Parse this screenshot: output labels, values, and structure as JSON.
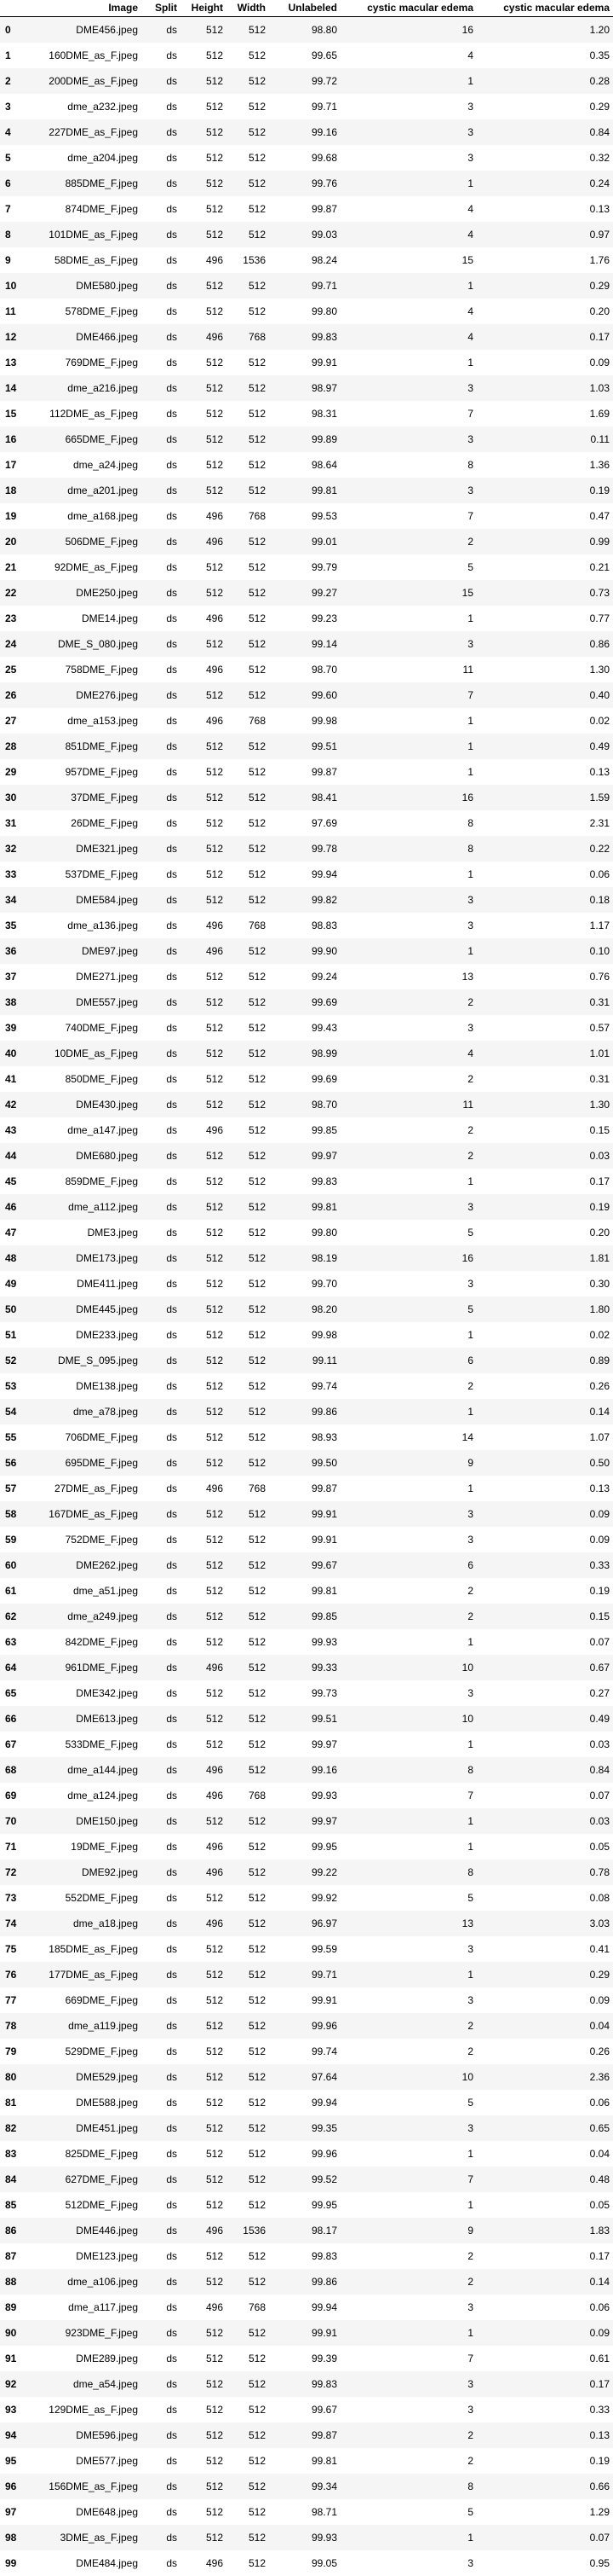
{
  "table": {
    "index_header": "",
    "columns": [
      "Image",
      "Split",
      "Height",
      "Width",
      "Unlabeled",
      "cystic macular edema",
      "cystic macular edema"
    ],
    "rows": [
      [
        "0",
        "DME456.jpeg",
        "ds",
        "512",
        "512",
        "98.80",
        "16",
        "1.20"
      ],
      [
        "1",
        "160DME_as_F.jpeg",
        "ds",
        "512",
        "512",
        "99.65",
        "4",
        "0.35"
      ],
      [
        "2",
        "200DME_as_F.jpeg",
        "ds",
        "512",
        "512",
        "99.72",
        "1",
        "0.28"
      ],
      [
        "3",
        "dme_a232.jpeg",
        "ds",
        "512",
        "512",
        "99.71",
        "3",
        "0.29"
      ],
      [
        "4",
        "227DME_as_F.jpeg",
        "ds",
        "512",
        "512",
        "99.16",
        "3",
        "0.84"
      ],
      [
        "5",
        "dme_a204.jpeg",
        "ds",
        "512",
        "512",
        "99.68",
        "3",
        "0.32"
      ],
      [
        "6",
        "885DME_F.jpeg",
        "ds",
        "512",
        "512",
        "99.76",
        "1",
        "0.24"
      ],
      [
        "7",
        "874DME_F.jpeg",
        "ds",
        "512",
        "512",
        "99.87",
        "4",
        "0.13"
      ],
      [
        "8",
        "101DME_as_F.jpeg",
        "ds",
        "512",
        "512",
        "99.03",
        "4",
        "0.97"
      ],
      [
        "9",
        "58DME_as_F.jpeg",
        "ds",
        "496",
        "1536",
        "98.24",
        "15",
        "1.76"
      ],
      [
        "10",
        "DME580.jpeg",
        "ds",
        "512",
        "512",
        "99.71",
        "1",
        "0.29"
      ],
      [
        "11",
        "578DME_F.jpeg",
        "ds",
        "512",
        "512",
        "99.80",
        "4",
        "0.20"
      ],
      [
        "12",
        "DME466.jpeg",
        "ds",
        "496",
        "768",
        "99.83",
        "4",
        "0.17"
      ],
      [
        "13",
        "769DME_F.jpeg",
        "ds",
        "512",
        "512",
        "99.91",
        "1",
        "0.09"
      ],
      [
        "14",
        "dme_a216.jpeg",
        "ds",
        "512",
        "512",
        "98.97",
        "3",
        "1.03"
      ],
      [
        "15",
        "112DME_as_F.jpeg",
        "ds",
        "512",
        "512",
        "98.31",
        "7",
        "1.69"
      ],
      [
        "16",
        "665DME_F.jpeg",
        "ds",
        "512",
        "512",
        "99.89",
        "3",
        "0.11"
      ],
      [
        "17",
        "dme_a24.jpeg",
        "ds",
        "512",
        "512",
        "98.64",
        "8",
        "1.36"
      ],
      [
        "18",
        "dme_a201.jpeg",
        "ds",
        "512",
        "512",
        "99.81",
        "3",
        "0.19"
      ],
      [
        "19",
        "dme_a168.jpeg",
        "ds",
        "496",
        "768",
        "99.53",
        "7",
        "0.47"
      ],
      [
        "20",
        "506DME_F.jpeg",
        "ds",
        "496",
        "512",
        "99.01",
        "2",
        "0.99"
      ],
      [
        "21",
        "92DME_as_F.jpeg",
        "ds",
        "512",
        "512",
        "99.79",
        "5",
        "0.21"
      ],
      [
        "22",
        "DME250.jpeg",
        "ds",
        "512",
        "512",
        "99.27",
        "15",
        "0.73"
      ],
      [
        "23",
        "DME14.jpeg",
        "ds",
        "496",
        "512",
        "99.23",
        "1",
        "0.77"
      ],
      [
        "24",
        "DME_S_080.jpeg",
        "ds",
        "512",
        "512",
        "99.14",
        "3",
        "0.86"
      ],
      [
        "25",
        "758DME_F.jpeg",
        "ds",
        "496",
        "512",
        "98.70",
        "11",
        "1.30"
      ],
      [
        "26",
        "DME276.jpeg",
        "ds",
        "512",
        "512",
        "99.60",
        "7",
        "0.40"
      ],
      [
        "27",
        "dme_a153.jpeg",
        "ds",
        "496",
        "768",
        "99.98",
        "1",
        "0.02"
      ],
      [
        "28",
        "851DME_F.jpeg",
        "ds",
        "512",
        "512",
        "99.51",
        "1",
        "0.49"
      ],
      [
        "29",
        "957DME_F.jpeg",
        "ds",
        "512",
        "512",
        "99.87",
        "1",
        "0.13"
      ],
      [
        "30",
        "37DME_F.jpeg",
        "ds",
        "512",
        "512",
        "98.41",
        "16",
        "1.59"
      ],
      [
        "31",
        "26DME_F.jpeg",
        "ds",
        "512",
        "512",
        "97.69",
        "8",
        "2.31"
      ],
      [
        "32",
        "DME321.jpeg",
        "ds",
        "512",
        "512",
        "99.78",
        "8",
        "0.22"
      ],
      [
        "33",
        "537DME_F.jpeg",
        "ds",
        "512",
        "512",
        "99.94",
        "1",
        "0.06"
      ],
      [
        "34",
        "DME584.jpeg",
        "ds",
        "512",
        "512",
        "99.82",
        "3",
        "0.18"
      ],
      [
        "35",
        "dme_a136.jpeg",
        "ds",
        "496",
        "768",
        "98.83",
        "3",
        "1.17"
      ],
      [
        "36",
        "DME97.jpeg",
        "ds",
        "496",
        "512",
        "99.90",
        "1",
        "0.10"
      ],
      [
        "37",
        "DME271.jpeg",
        "ds",
        "512",
        "512",
        "99.24",
        "13",
        "0.76"
      ],
      [
        "38",
        "DME557.jpeg",
        "ds",
        "512",
        "512",
        "99.69",
        "2",
        "0.31"
      ],
      [
        "39",
        "740DME_F.jpeg",
        "ds",
        "512",
        "512",
        "99.43",
        "3",
        "0.57"
      ],
      [
        "40",
        "10DME_as_F.jpeg",
        "ds",
        "512",
        "512",
        "98.99",
        "4",
        "1.01"
      ],
      [
        "41",
        "850DME_F.jpeg",
        "ds",
        "512",
        "512",
        "99.69",
        "2",
        "0.31"
      ],
      [
        "42",
        "DME430.jpeg",
        "ds",
        "512",
        "512",
        "98.70",
        "11",
        "1.30"
      ],
      [
        "43",
        "dme_a147.jpeg",
        "ds",
        "496",
        "512",
        "99.85",
        "2",
        "0.15"
      ],
      [
        "44",
        "DME680.jpeg",
        "ds",
        "512",
        "512",
        "99.97",
        "2",
        "0.03"
      ],
      [
        "45",
        "859DME_F.jpeg",
        "ds",
        "512",
        "512",
        "99.83",
        "1",
        "0.17"
      ],
      [
        "46",
        "dme_a112.jpeg",
        "ds",
        "512",
        "512",
        "99.81",
        "3",
        "0.19"
      ],
      [
        "47",
        "DME3.jpeg",
        "ds",
        "512",
        "512",
        "99.80",
        "5",
        "0.20"
      ],
      [
        "48",
        "DME173.jpeg",
        "ds",
        "512",
        "512",
        "98.19",
        "16",
        "1.81"
      ],
      [
        "49",
        "DME411.jpeg",
        "ds",
        "512",
        "512",
        "99.70",
        "3",
        "0.30"
      ],
      [
        "50",
        "DME445.jpeg",
        "ds",
        "512",
        "512",
        "98.20",
        "5",
        "1.80"
      ],
      [
        "51",
        "DME233.jpeg",
        "ds",
        "512",
        "512",
        "99.98",
        "1",
        "0.02"
      ],
      [
        "52",
        "DME_S_095.jpeg",
        "ds",
        "512",
        "512",
        "99.11",
        "6",
        "0.89"
      ],
      [
        "53",
        "DME138.jpeg",
        "ds",
        "512",
        "512",
        "99.74",
        "2",
        "0.26"
      ],
      [
        "54",
        "dme_a78.jpeg",
        "ds",
        "512",
        "512",
        "99.86",
        "1",
        "0.14"
      ],
      [
        "55",
        "706DME_F.jpeg",
        "ds",
        "512",
        "512",
        "98.93",
        "14",
        "1.07"
      ],
      [
        "56",
        "695DME_F.jpeg",
        "ds",
        "512",
        "512",
        "99.50",
        "9",
        "0.50"
      ],
      [
        "57",
        "27DME_as_F.jpeg",
        "ds",
        "496",
        "768",
        "99.87",
        "1",
        "0.13"
      ],
      [
        "58",
        "167DME_as_F.jpeg",
        "ds",
        "512",
        "512",
        "99.91",
        "3",
        "0.09"
      ],
      [
        "59",
        "752DME_F.jpeg",
        "ds",
        "512",
        "512",
        "99.91",
        "3",
        "0.09"
      ],
      [
        "60",
        "DME262.jpeg",
        "ds",
        "512",
        "512",
        "99.67",
        "6",
        "0.33"
      ],
      [
        "61",
        "dme_a51.jpeg",
        "ds",
        "512",
        "512",
        "99.81",
        "2",
        "0.19"
      ],
      [
        "62",
        "dme_a249.jpeg",
        "ds",
        "512",
        "512",
        "99.85",
        "2",
        "0.15"
      ],
      [
        "63",
        "842DME_F.jpeg",
        "ds",
        "512",
        "512",
        "99.93",
        "1",
        "0.07"
      ],
      [
        "64",
        "961DME_F.jpeg",
        "ds",
        "496",
        "512",
        "99.33",
        "10",
        "0.67"
      ],
      [
        "65",
        "DME342.jpeg",
        "ds",
        "512",
        "512",
        "99.73",
        "3",
        "0.27"
      ],
      [
        "66",
        "DME613.jpeg",
        "ds",
        "512",
        "512",
        "99.51",
        "10",
        "0.49"
      ],
      [
        "67",
        "533DME_F.jpeg",
        "ds",
        "512",
        "512",
        "99.97",
        "1",
        "0.03"
      ],
      [
        "68",
        "dme_a144.jpeg",
        "ds",
        "496",
        "512",
        "99.16",
        "8",
        "0.84"
      ],
      [
        "69",
        "dme_a124.jpeg",
        "ds",
        "496",
        "768",
        "99.93",
        "7",
        "0.07"
      ],
      [
        "70",
        "DME150.jpeg",
        "ds",
        "512",
        "512",
        "99.97",
        "1",
        "0.03"
      ],
      [
        "71",
        "19DME_F.jpeg",
        "ds",
        "496",
        "512",
        "99.95",
        "1",
        "0.05"
      ],
      [
        "72",
        "DME92.jpeg",
        "ds",
        "496",
        "512",
        "99.22",
        "8",
        "0.78"
      ],
      [
        "73",
        "552DME_F.jpeg",
        "ds",
        "512",
        "512",
        "99.92",
        "5",
        "0.08"
      ],
      [
        "74",
        "dme_a18.jpeg",
        "ds",
        "496",
        "512",
        "96.97",
        "13",
        "3.03"
      ],
      [
        "75",
        "185DME_as_F.jpeg",
        "ds",
        "512",
        "512",
        "99.59",
        "3",
        "0.41"
      ],
      [
        "76",
        "177DME_as_F.jpeg",
        "ds",
        "512",
        "512",
        "99.71",
        "1",
        "0.29"
      ],
      [
        "77",
        "669DME_F.jpeg",
        "ds",
        "512",
        "512",
        "99.91",
        "3",
        "0.09"
      ],
      [
        "78",
        "dme_a119.jpeg",
        "ds",
        "512",
        "512",
        "99.96",
        "2",
        "0.04"
      ],
      [
        "79",
        "529DME_F.jpeg",
        "ds",
        "512",
        "512",
        "99.74",
        "2",
        "0.26"
      ],
      [
        "80",
        "DME529.jpeg",
        "ds",
        "512",
        "512",
        "97.64",
        "10",
        "2.36"
      ],
      [
        "81",
        "DME588.jpeg",
        "ds",
        "512",
        "512",
        "99.94",
        "5",
        "0.06"
      ],
      [
        "82",
        "DME451.jpeg",
        "ds",
        "512",
        "512",
        "99.35",
        "3",
        "0.65"
      ],
      [
        "83",
        "825DME_F.jpeg",
        "ds",
        "512",
        "512",
        "99.96",
        "1",
        "0.04"
      ],
      [
        "84",
        "627DME_F.jpeg",
        "ds",
        "512",
        "512",
        "99.52",
        "7",
        "0.48"
      ],
      [
        "85",
        "512DME_F.jpeg",
        "ds",
        "512",
        "512",
        "99.95",
        "1",
        "0.05"
      ],
      [
        "86",
        "DME446.jpeg",
        "ds",
        "496",
        "1536",
        "98.17",
        "9",
        "1.83"
      ],
      [
        "87",
        "DME123.jpeg",
        "ds",
        "512",
        "512",
        "99.83",
        "2",
        "0.17"
      ],
      [
        "88",
        "dme_a106.jpeg",
        "ds",
        "512",
        "512",
        "99.86",
        "2",
        "0.14"
      ],
      [
        "89",
        "dme_a117.jpeg",
        "ds",
        "496",
        "768",
        "99.94",
        "3",
        "0.06"
      ],
      [
        "90",
        "923DME_F.jpeg",
        "ds",
        "512",
        "512",
        "99.91",
        "1",
        "0.09"
      ],
      [
        "91",
        "DME289.jpeg",
        "ds",
        "512",
        "512",
        "99.39",
        "7",
        "0.61"
      ],
      [
        "92",
        "dme_a54.jpeg",
        "ds",
        "512",
        "512",
        "99.83",
        "3",
        "0.17"
      ],
      [
        "93",
        "129DME_as_F.jpeg",
        "ds",
        "512",
        "512",
        "99.67",
        "3",
        "0.33"
      ],
      [
        "94",
        "DME596.jpeg",
        "ds",
        "512",
        "512",
        "99.87",
        "2",
        "0.13"
      ],
      [
        "95",
        "DME577.jpeg",
        "ds",
        "512",
        "512",
        "99.81",
        "2",
        "0.19"
      ],
      [
        "96",
        "156DME_as_F.jpeg",
        "ds",
        "512",
        "512",
        "99.34",
        "8",
        "0.66"
      ],
      [
        "97",
        "DME648.jpeg",
        "ds",
        "512",
        "512",
        "98.71",
        "5",
        "1.29"
      ],
      [
        "98",
        "3DME_as_F.jpeg",
        "ds",
        "512",
        "512",
        "99.93",
        "1",
        "0.07"
      ],
      [
        "99",
        "DME484.jpeg",
        "ds",
        "496",
        "512",
        "99.05",
        "3",
        "0.95"
      ]
    ]
  }
}
